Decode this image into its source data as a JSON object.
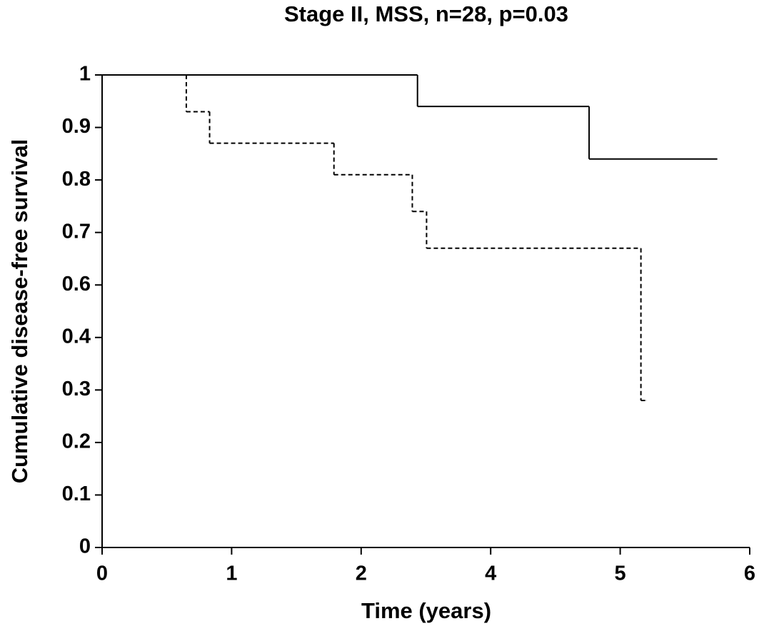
{
  "chart_data": {
    "type": "step",
    "title": "Stage II, MSS, n=28, p=0.03",
    "x_label": "Time (years)",
    "y_label": "Cumulative disease-free survival",
    "xticks": [
      0,
      1,
      2,
      4,
      5,
      6
    ],
    "yticks": [
      0.0,
      0.1,
      0.2,
      0.3,
      0.4,
      0.6,
      0.7,
      0.8,
      0.9,
      1.0
    ],
    "xlim": [
      0,
      6
    ],
    "ylim": [
      0.0,
      1.0
    ],
    "series": [
      {
        "color": "#000000",
        "dashed": false,
        "x": [
          0,
          2.87,
          4.76,
          5.75
        ],
        "values": [
          1.0,
          0.94,
          0.84,
          0.84
        ]
      },
      {
        "color": "#000000",
        "dashed": true,
        "x": [
          0,
          0.65,
          0.83,
          1.79,
          2.79,
          3.01,
          5.16,
          5.2
        ],
        "values": [
          1.0,
          0.93,
          0.87,
          0.81,
          0.74,
          0.67,
          0.28,
          0.28
        ]
      }
    ]
  }
}
